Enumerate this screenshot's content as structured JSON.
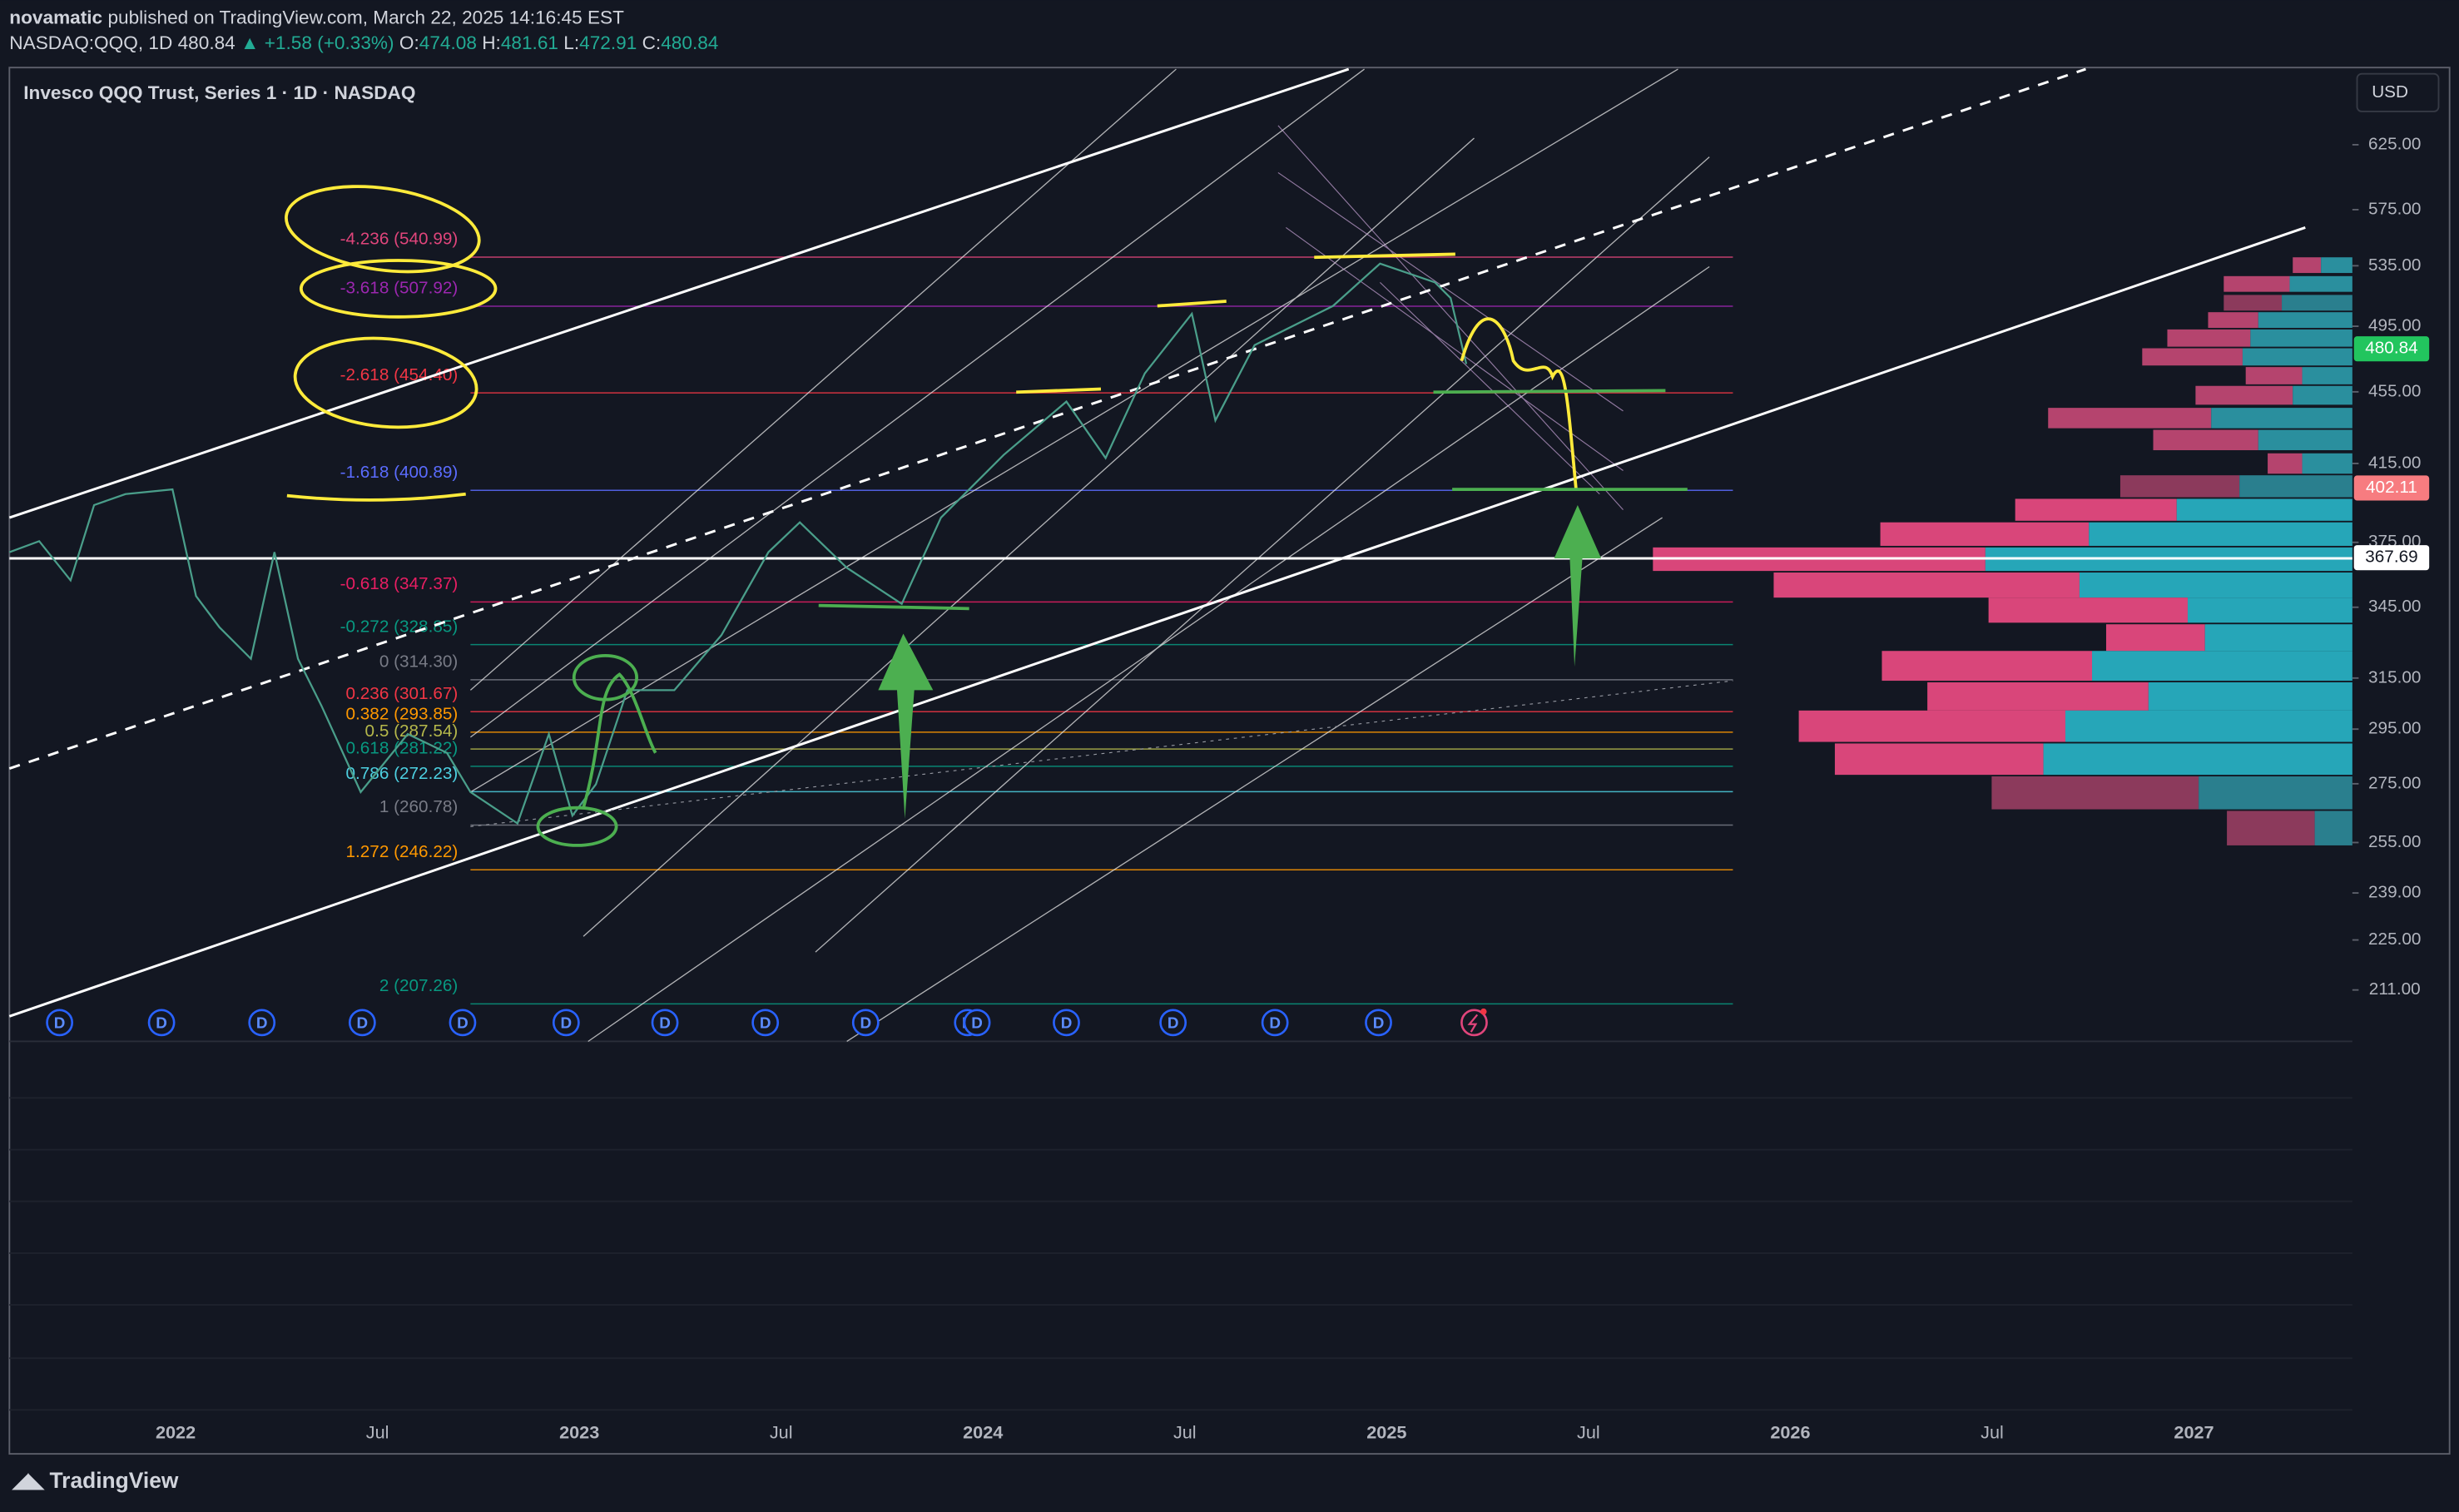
{
  "header": {
    "author": "novamatic",
    "published": "published on TradingView.com, March 22, 2025 14:16:45 EST",
    "symbol": "NASDAQ:QQQ, 1D",
    "last": "480.84",
    "change": "▲ +1.58 (+0.33%)",
    "ohlc": [
      {
        "key": "O:",
        "value": "474.08"
      },
      {
        "key": "H:",
        "value": "481.61"
      },
      {
        "key": "L:",
        "value": "472.91"
      },
      {
        "key": "C:",
        "value": "480.84"
      }
    ]
  },
  "legend": "Invesco QQQ Trust, Series 1 · 1D · NASDAQ",
  "currency": "USD",
  "price_axis": {
    "log_scale": true,
    "range": [
      197.5,
      686
    ],
    "ticks": [
      {
        "value": 625,
        "label": "625.00"
      },
      {
        "value": 575,
        "label": "575.00"
      },
      {
        "value": 535,
        "label": "535.00"
      },
      {
        "value": 495,
        "label": "495.00"
      },
      {
        "value": 455,
        "label": "455.00"
      },
      {
        "value": 415,
        "label": "415.00"
      },
      {
        "value": 375,
        "label": "375.00"
      },
      {
        "value": 345,
        "label": "345.00"
      },
      {
        "value": 315,
        "label": "315.00"
      },
      {
        "value": 295,
        "label": "295.00"
      },
      {
        "value": 275,
        "label": "275.00"
      },
      {
        "value": 255,
        "label": "255.00"
      },
      {
        "value": 239,
        "label": "239.00"
      },
      {
        "value": 225,
        "label": "225.00"
      },
      {
        "value": 211,
        "label": "211.00"
      }
    ]
  },
  "price_labels": [
    {
      "value": 480.84,
      "label": "480.84",
      "color": "#22c55e"
    },
    {
      "value": 402.11,
      "label": "402.11",
      "color": "#f77c80"
    },
    {
      "value": 367.69,
      "label": "367.69",
      "color": "#ffffff"
    }
  ],
  "fib_levels": [
    {
      "price": 540.99,
      "label": "-4.236 (540.99)",
      "color": "#e0457b"
    },
    {
      "price": 507.92,
      "label": "-3.618 (507.92)",
      "color": "#9c27b0"
    },
    {
      "price": 454.4,
      "label": "-2.618 (454.40)",
      "color": "#f23645"
    },
    {
      "price": 400.89,
      "label": "-1.618 (400.89)",
      "color": "#5b6cff"
    },
    {
      "price": 347.37,
      "label": "-0.618 (347.37)",
      "color": "#e91e63"
    },
    {
      "price": 328.85,
      "label": "-0.272 (328.85)",
      "color": "#089981"
    },
    {
      "price": 314.3,
      "label": "0 (314.30)",
      "color": "#787b86"
    },
    {
      "price": 301.67,
      "label": "0.236 (301.67)",
      "color": "#f23645"
    },
    {
      "price": 293.85,
      "label": "0.382 (293.85)",
      "color": "#ff9800"
    },
    {
      "price": 287.54,
      "label": "0.5 (287.54)",
      "color": "#b5b84b"
    },
    {
      "price": 281.22,
      "label": "0.618 (281.22)",
      "color": "#089981"
    },
    {
      "price": 272.23,
      "label": "0.786 (272.23)",
      "color": "#4dd0e1"
    },
    {
      "price": 260.78,
      "label": "1 (260.78)",
      "color": "#787b86"
    },
    {
      "price": 246.22,
      "label": "1.272 (246.22)",
      "color": "#ff9800"
    },
    {
      "price": 207.26,
      "label": "2 (207.26)",
      "color": "#089981"
    }
  ],
  "time_axis": [
    "2022",
    "Jul",
    "2023",
    "Jul",
    "2024",
    "Jul",
    "2025",
    "Jul",
    "2026",
    "Jul",
    "2027"
  ],
  "dividend_marker": "D",
  "brand": "TradingView"
}
